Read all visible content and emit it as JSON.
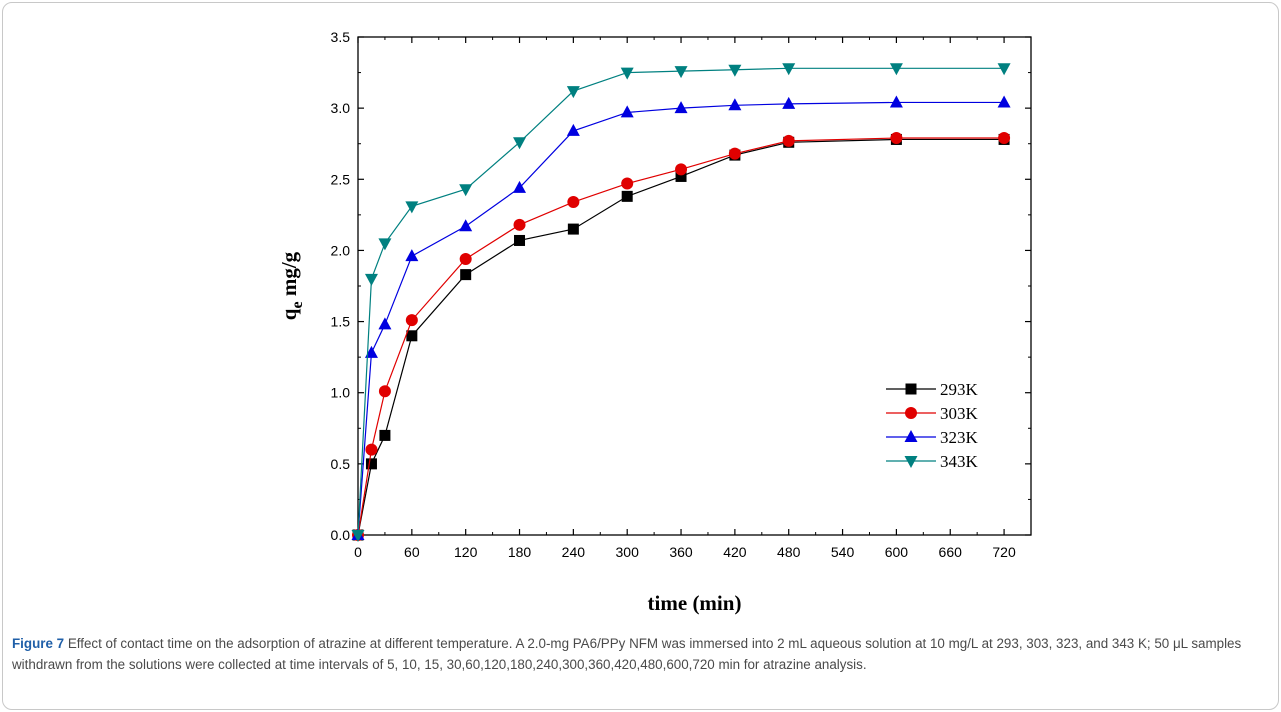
{
  "figure": {
    "label": "Figure 7",
    "caption": "Effect of contact time on the adsorption of atrazine at different temperature. A 2.0-mg PA6/PPy NFM was immersed into 2 mL aqueous solution at 10 mg/L at 293, 303, 323, and 343 K; 50 μL samples withdrawn from the solutions were collected at time intervals of 5, 10, 15, 30,60,120,180,240,300,360,420,480,600,720 min for atrazine analysis."
  },
  "chart_data": {
    "type": "line",
    "xlabel": "time (min)",
    "ylabel_main": "q",
    "ylabel_sub": "e",
    "ylabel_unit": " mg/g",
    "xlim": [
      0,
      750
    ],
    "ylim": [
      0,
      3.5
    ],
    "x_ticks": [
      0,
      60,
      120,
      180,
      240,
      300,
      360,
      420,
      480,
      540,
      600,
      660,
      720
    ],
    "y_ticks": [
      "0.0",
      "0.5",
      "1.0",
      "1.5",
      "2.0",
      "2.5",
      "3.0",
      "3.5"
    ],
    "legend_position": "bottom-right",
    "x": [
      0,
      15,
      30,
      60,
      120,
      180,
      240,
      300,
      360,
      420,
      480,
      600,
      720
    ],
    "series": [
      {
        "name": "293K",
        "marker": "square",
        "color": "#000000",
        "values": [
          0.0,
          0.5,
          0.7,
          1.4,
          1.83,
          2.07,
          2.15,
          2.38,
          2.52,
          2.67,
          2.76,
          2.78,
          2.78
        ]
      },
      {
        "name": "303K",
        "marker": "circle",
        "color": "#e00000",
        "values": [
          0.0,
          0.6,
          1.01,
          1.51,
          1.94,
          2.18,
          2.34,
          2.47,
          2.57,
          2.68,
          2.77,
          2.79,
          2.79
        ]
      },
      {
        "name": "323K",
        "marker": "triangle-up",
        "color": "#0000e0",
        "values": [
          0.0,
          1.28,
          1.48,
          1.96,
          2.17,
          2.44,
          2.84,
          2.97,
          3.0,
          3.02,
          3.03,
          3.04,
          3.04
        ]
      },
      {
        "name": "343K",
        "marker": "triangle-down",
        "color": "#008080",
        "values": [
          0.0,
          1.8,
          2.05,
          2.31,
          2.43,
          2.76,
          3.12,
          3.25,
          3.26,
          3.27,
          3.28,
          3.28,
          3.28
        ]
      }
    ]
  }
}
